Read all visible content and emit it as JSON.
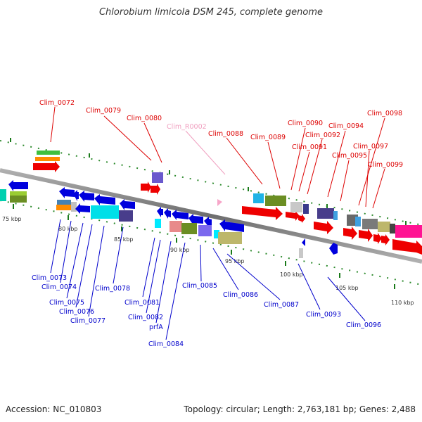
{
  "title": "Chlorobium limicola DSM 245, complete genome",
  "footer": {
    "accession": "Accession: NC_010803",
    "stats": "Topology: circular; Length: 2,763,181 bp; Genes: 2,488"
  },
  "colors": {
    "forward_label": "#dd0000",
    "reverse_label": "#0000cc",
    "rna_label": "#f0a0c0",
    "backbone": "#888888"
  },
  "scale": {
    "unit": "kbp",
    "ticks": [
      "75 kbp",
      "80 kbp",
      "85 kbp",
      "90 kbp",
      "95 kbp",
      "100 kbp",
      "105 kbp",
      "110 kbp"
    ]
  },
  "forward_labels": [
    "Clim_0072",
    "Clim_0079",
    "Clim_0080",
    "Clim_0088",
    "Clim_0089",
    "Clim_0090",
    "Clim_0091",
    "Clim_0092",
    "Clim_0094",
    "Clim_0095",
    "Clim_0097",
    "Clim_0098",
    "Clim_0099"
  ],
  "rna_labels": [
    "Clim_R0002"
  ],
  "reverse_labels": [
    "Clim_0073",
    "Clim_0074",
    "Clim_0075",
    "Clim_0076",
    "Clim_0077",
    "Clim_0078",
    "Clim_0081",
    "Clim_0082",
    "prfA",
    "Clim_0084",
    "Clim_0085",
    "Clim_0086",
    "Clim_0087",
    "Clim_0093",
    "Clim_0096"
  ]
}
